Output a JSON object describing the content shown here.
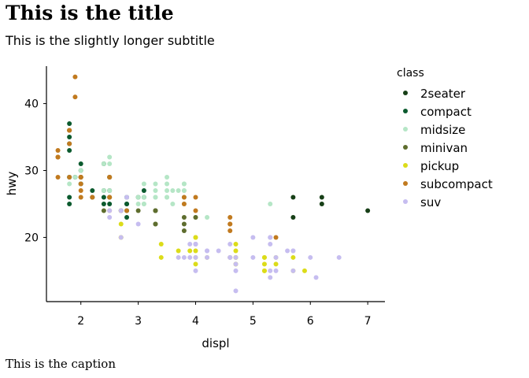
{
  "chart_data": {
    "type": "scatter",
    "title": "This is the title",
    "subtitle": "This is the slightly longer subtitle",
    "caption": "This is the caption",
    "xlabel": "displ",
    "ylabel": "hwy",
    "xlim": [
      1.4,
      7.3
    ],
    "ylim": [
      10.4,
      45.6
    ],
    "xticks": [
      2,
      3,
      4,
      5,
      6,
      7
    ],
    "yticks": [
      20,
      30,
      40
    ],
    "grid": false,
    "legend": {
      "title": "class",
      "position": "right"
    },
    "series": [
      {
        "name": "2seater",
        "color": "#173f17",
        "points": [
          [
            5.7,
            26
          ],
          [
            5.7,
            23
          ],
          [
            6.2,
            26
          ],
          [
            6.2,
            25
          ],
          [
            7.0,
            24
          ]
        ]
      },
      {
        "name": "compact",
        "color": "#0b5a2e",
        "points": [
          [
            1.8,
            29
          ],
          [
            1.8,
            29
          ],
          [
            2.0,
            31
          ],
          [
            2.0,
            30
          ],
          [
            2.8,
            26
          ],
          [
            2.8,
            26
          ],
          [
            3.1,
            27
          ],
          [
            1.8,
            26
          ],
          [
            1.8,
            25
          ],
          [
            2.0,
            28
          ],
          [
            2.0,
            29
          ],
          [
            2.2,
            26
          ],
          [
            2.2,
            27
          ],
          [
            2.4,
            26
          ],
          [
            2.4,
            27
          ],
          [
            3.0,
            26
          ],
          [
            2.5,
            27
          ],
          [
            2.5,
            25
          ],
          [
            1.8,
            33
          ],
          [
            1.8,
            35
          ],
          [
            1.8,
            37
          ],
          [
            1.9,
            29
          ],
          [
            2.0,
            29
          ],
          [
            2.5,
            29
          ],
          [
            2.8,
            25
          ],
          [
            2.0,
            28
          ],
          [
            2.4,
            31
          ],
          [
            2.5,
            26
          ],
          [
            2.5,
            29
          ],
          [
            2.7,
            24
          ],
          [
            2.4,
            25
          ],
          [
            2.8,
            23
          ],
          [
            2.8,
            24
          ],
          [
            3.1,
            26
          ],
          [
            1.8,
            36
          ],
          [
            1.8,
            34
          ],
          [
            2.8,
            25
          ]
        ]
      },
      {
        "name": "midsize",
        "color": "#b5e6c6",
        "points": [
          [
            2.4,
            27
          ],
          [
            3.5,
            26
          ],
          [
            3.0,
            26
          ],
          [
            3.6,
            25
          ],
          [
            3.3,
            28
          ],
          [
            3.8,
            26
          ],
          [
            3.8,
            28
          ],
          [
            4.0,
            23
          ],
          [
            5.3,
            25
          ],
          [
            1.8,
            29
          ],
          [
            2.0,
            28
          ],
          [
            2.4,
            31
          ],
          [
            2.5,
            32
          ],
          [
            2.5,
            27
          ],
          [
            3.1,
            26
          ],
          [
            2.5,
            29
          ],
          [
            3.3,
            27
          ],
          [
            3.5,
            28
          ],
          [
            3.5,
            29
          ],
          [
            3.1,
            25
          ],
          [
            3.8,
            27
          ],
          [
            3.5,
            26
          ],
          [
            2.5,
            31
          ],
          [
            2.8,
            26
          ],
          [
            3.6,
            27
          ],
          [
            3.8,
            26
          ],
          [
            3.8,
            27
          ],
          [
            3.1,
            28
          ],
          [
            4.2,
            23
          ],
          [
            1.9,
            29
          ],
          [
            2.0,
            26
          ],
          [
            3.0,
            25
          ],
          [
            3.3,
            26
          ],
          [
            3.7,
            27
          ],
          [
            3.8,
            28
          ],
          [
            3.8,
            25
          ],
          [
            3.5,
            27
          ],
          [
            3.3,
            26
          ],
          [
            1.8,
            28
          ],
          [
            2.0,
            30
          ],
          [
            3.1,
            25
          ]
        ]
      },
      {
        "name": "minivan",
        "color": "#5e6d2e",
        "points": [
          [
            2.4,
            24
          ],
          [
            3.0,
            24
          ],
          [
            3.3,
            22
          ],
          [
            3.3,
            22
          ],
          [
            3.3,
            24
          ],
          [
            3.3,
            24
          ],
          [
            3.3,
            24
          ],
          [
            3.8,
            22
          ],
          [
            3.8,
            21
          ],
          [
            3.8,
            23
          ],
          [
            4.0,
            23
          ]
        ]
      },
      {
        "name": "pickup",
        "color": "#dcdc19",
        "points": [
          [
            2.7,
            20
          ],
          [
            2.7,
            20
          ],
          [
            2.7,
            22
          ],
          [
            3.4,
            17
          ],
          [
            3.4,
            19
          ],
          [
            3.9,
            18
          ],
          [
            4.0,
            17
          ],
          [
            4.2,
            17
          ],
          [
            4.6,
            17
          ],
          [
            4.7,
            16
          ],
          [
            4.7,
            17
          ],
          [
            4.7,
            18
          ],
          [
            5.2,
            15
          ],
          [
            5.2,
            16
          ],
          [
            5.7,
            17
          ],
          [
            5.9,
            15
          ],
          [
            4.7,
            17
          ],
          [
            4.7,
            17
          ],
          [
            4.0,
            20
          ],
          [
            4.0,
            18
          ],
          [
            4.0,
            19
          ],
          [
            5.2,
            17
          ],
          [
            5.2,
            15
          ],
          [
            5.4,
            17
          ],
          [
            5.7,
            15
          ],
          [
            5.2,
            17
          ],
          [
            4.0,
            16
          ],
          [
            3.7,
            18
          ],
          [
            4.7,
            19
          ],
          [
            4.6,
            17
          ],
          [
            4.7,
            16
          ],
          [
            5.4,
            16
          ],
          [
            4.0,
            20
          ]
        ]
      },
      {
        "name": "subcompact",
        "color": "#c17a1f",
        "points": [
          [
            3.8,
            26
          ],
          [
            3.8,
            25
          ],
          [
            4.0,
            26
          ],
          [
            4.0,
            24
          ],
          [
            4.6,
            21
          ],
          [
            4.6,
            22
          ],
          [
            4.6,
            23
          ],
          [
            4.6,
            22
          ],
          [
            5.4,
            20
          ],
          [
            1.6,
            33
          ],
          [
            1.6,
            32
          ],
          [
            1.6,
            32
          ],
          [
            1.6,
            29
          ],
          [
            1.6,
            32
          ],
          [
            1.8,
            34
          ],
          [
            1.8,
            36
          ],
          [
            1.8,
            36
          ],
          [
            2.0,
            29
          ],
          [
            2.0,
            26
          ],
          [
            2.0,
            27
          ],
          [
            2.0,
            28
          ],
          [
            2.5,
            26
          ],
          [
            2.5,
            24
          ],
          [
            2.2,
            26
          ],
          [
            2.5,
            29
          ],
          [
            2.7,
            24
          ],
          [
            2.8,
            24
          ],
          [
            1.9,
            44
          ],
          [
            1.9,
            41
          ],
          [
            2.0,
            29
          ],
          [
            2.0,
            29
          ],
          [
            2.5,
            26
          ],
          [
            2.5,
            29
          ],
          [
            1.8,
            29
          ]
        ]
      },
      {
        "name": "suv",
        "color": "#c6bdf0",
        "points": [
          [
            4.2,
            18
          ],
          [
            4.2,
            17
          ],
          [
            4.4,
            18
          ],
          [
            4.6,
            17
          ],
          [
            5.4,
            17
          ],
          [
            5.4,
            15
          ],
          [
            4.0,
            19
          ],
          [
            4.0,
            19
          ],
          [
            4.6,
            17
          ],
          [
            4.6,
            17
          ],
          [
            5.0,
            17
          ],
          [
            5.3,
            20
          ],
          [
            5.3,
            15
          ],
          [
            5.3,
            14
          ],
          [
            5.7,
            15
          ],
          [
            6.0,
            17
          ],
          [
            5.3,
            19
          ],
          [
            5.3,
            20
          ],
          [
            5.7,
            18
          ],
          [
            6.1,
            14
          ],
          [
            6.5,
            17
          ],
          [
            5.6,
            18
          ],
          [
            3.9,
            19
          ],
          [
            4.7,
            12
          ],
          [
            4.7,
            15
          ],
          [
            5.7,
            18
          ],
          [
            3.8,
            17
          ],
          [
            4.0,
            15
          ],
          [
            4.6,
            19
          ],
          [
            5.0,
            20
          ],
          [
            4.0,
            17
          ],
          [
            4.2,
            18
          ],
          [
            3.7,
            17
          ],
          [
            4.7,
            17
          ],
          [
            4.7,
            16
          ],
          [
            2.5,
            23
          ],
          [
            2.5,
            24
          ],
          [
            2.7,
            20
          ],
          [
            2.7,
            24
          ],
          [
            3.0,
            22
          ],
          [
            3.9,
            17
          ],
          [
            2.8,
            26
          ],
          [
            4.0,
            19
          ]
        ]
      }
    ]
  }
}
